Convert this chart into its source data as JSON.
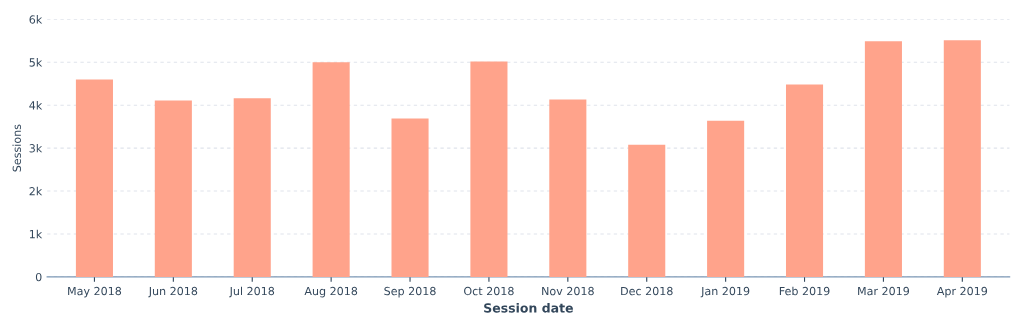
{
  "chart_data": {
    "type": "bar",
    "xlabel": "Session date",
    "ylabel": "Sessions",
    "categories": [
      "May 2018",
      "Jun 2018",
      "Jul 2018",
      "Aug 2018",
      "Sep 2018",
      "Oct 2018",
      "Nov 2018",
      "Dec 2018",
      "Jan 2019",
      "Feb 2019",
      "Mar 2019",
      "Apr 2019"
    ],
    "values": [
      4600,
      4110,
      4160,
      5000,
      3690,
      5020,
      4130,
      3080,
      3640,
      4480,
      5490,
      5510
    ],
    "color": "#ffa38b",
    "ylim": [
      0,
      6000
    ],
    "yticks": [
      0,
      {
        "value": 1000,
        "label": "1k"
      },
      {
        "value": 2000,
        "label": "2k"
      },
      {
        "value": 3000,
        "label": "3k"
      },
      {
        "value": 4000,
        "label": "4k"
      },
      {
        "value": 5000,
        "label": "5k"
      },
      {
        "value": 6000,
        "label": "6k"
      }
    ],
    "grid": "y"
  }
}
